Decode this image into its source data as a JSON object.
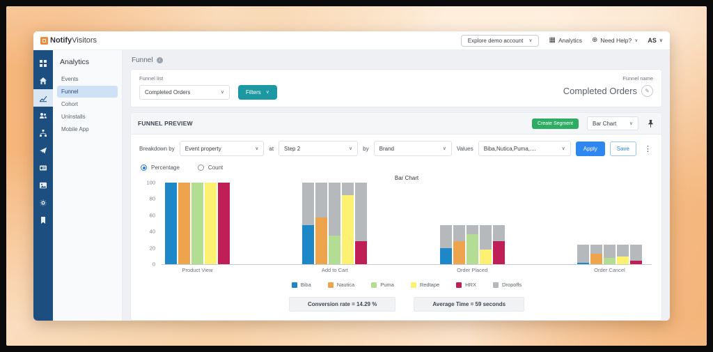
{
  "brand": {
    "bold": "Notify",
    "light": "Visitors"
  },
  "topbar": {
    "explore_button": "Explore demo account",
    "analytics_label": "Analytics",
    "help_label": "Need Help?",
    "avatar": "AS"
  },
  "sidebar": {
    "title": "Analytics",
    "items": [
      {
        "label": "Events"
      },
      {
        "label": "Funnel"
      },
      {
        "label": "Cohort"
      },
      {
        "label": "Uninstalls"
      },
      {
        "label": "Mobile App"
      }
    ]
  },
  "page": {
    "title": "Funnel",
    "funnel_list_label": "Funnel list",
    "funnel_select_value": "Completed Orders",
    "filters_label": "Filters",
    "funnel_name_label": "Funnel name",
    "funnel_name_value": "Completed Orders",
    "edit_icon": "✎"
  },
  "preview": {
    "title": "FUNNEL PREVIEW",
    "create_segment_label": "Create Segment",
    "chart_type_value": "Bar Chart",
    "breakdown": {
      "breakdown_by_label": "Breakdown by",
      "breakdown_by_value": "Event property",
      "at_label": "at",
      "at_value": "Step 2",
      "by_label": "by",
      "by_value": "Brand",
      "values_label": "Values",
      "values_value": "Biba,Nutica,Puma,....",
      "apply_label": "Apply",
      "save_label": "Save"
    },
    "mode": {
      "percentage_label": "Percentage",
      "count_label": "Count"
    },
    "stats": {
      "conversion": "Conversion rate = 14.29 %",
      "avg_time": "Average Time = 59 seconds"
    }
  },
  "colors": {
    "teal_accent": "#1b98a2",
    "green_accent": "#2eac64",
    "blue_accent": "#2e86f0",
    "rail_blue": "#1c4e80"
  },
  "chart_data": {
    "type": "bar",
    "title": "Bar Chart",
    "categories": [
      "Product View",
      "Add to Cart",
      "Order Placed",
      "Order Cancel"
    ],
    "series": [
      {
        "name": "Biba",
        "color": "#1d87c8",
        "values": [
          100,
          48,
          20,
          2
        ]
      },
      {
        "name": "Nautica",
        "color": "#eda44d",
        "values": [
          100,
          57,
          28,
          13
        ]
      },
      {
        "name": "Puma",
        "color": "#b2dd93",
        "values": [
          100,
          35,
          37,
          8
        ]
      },
      {
        "name": "Redtape",
        "color": "#fcf170",
        "values": [
          100,
          85,
          18,
          9
        ]
      },
      {
        "name": "HRX",
        "color": "#c01e56",
        "values": [
          100,
          28,
          28,
          4
        ]
      }
    ],
    "dropoff_name": "Dropoffs",
    "dropoff_color": "#b6b9bb",
    "dropoff_tops": [
      100,
      100,
      48,
      24
    ],
    "ylabel": "",
    "xlabel": "",
    "ylim": [
      0,
      100
    ],
    "y_ticks": [
      0,
      20,
      40,
      60,
      80,
      100
    ],
    "grid": false,
    "legend_position": "bottom"
  }
}
